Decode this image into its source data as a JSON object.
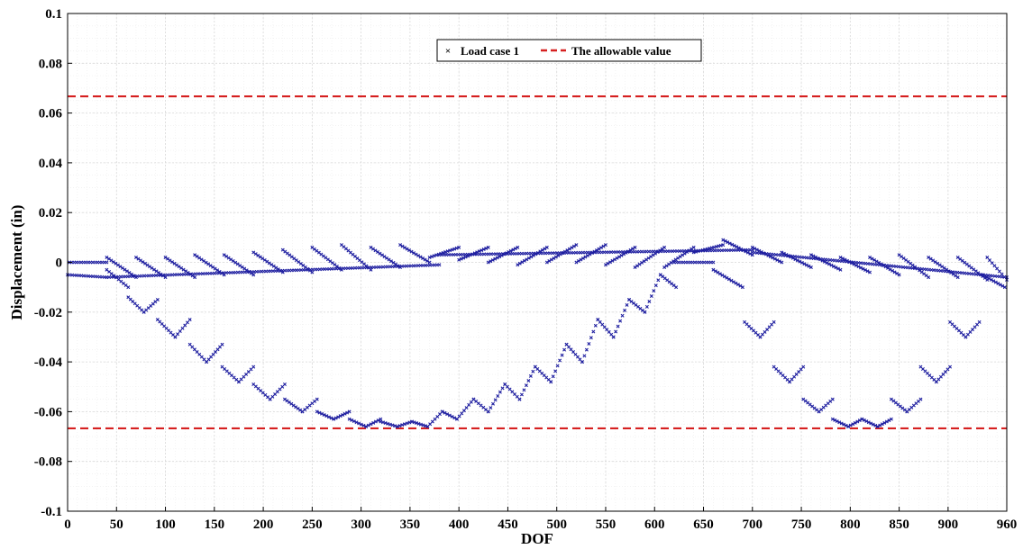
{
  "chart_data": {
    "type": "scatter",
    "xlabel": "DOF",
    "ylabel": "Displacement (in)",
    "xlim": [
      0,
      960
    ],
    "ylim": [
      -0.1,
      0.1
    ],
    "xticks": [
      0,
      50,
      100,
      150,
      200,
      250,
      300,
      350,
      400,
      450,
      500,
      550,
      600,
      650,
      700,
      750,
      800,
      850,
      900,
      960
    ],
    "xtick_labels": [
      "0",
      "50",
      "100",
      "150",
      "200",
      "250",
      "300",
      "350",
      "400",
      "450",
      "500",
      "550",
      "600",
      "650",
      "700",
      "750",
      "800",
      "850",
      "900",
      "960"
    ],
    "yticks": [
      0.1,
      0.08,
      0.06,
      0.04,
      0.02,
      0,
      -0.02,
      -0.04,
      -0.06,
      -0.08,
      -0.1
    ],
    "ytick_labels": [
      "0.1",
      "0.08",
      "0.06",
      "0.04",
      "0.02",
      "0",
      "-0.02",
      "-0.04",
      "-0.06",
      "-0.08",
      "-0.1"
    ],
    "grid": "major and minor",
    "legend_position": "top-center",
    "colors": {
      "series": "#1f1fa0",
      "limit": "#d62020",
      "grid": "#d9d9d9"
    },
    "series": [
      {
        "name": "Load case 1",
        "marker": "x",
        "segments": [
          {
            "x0": 2,
            "x1": 40,
            "y0": 0.0,
            "y1": 0.0
          },
          {
            "x0": 40,
            "x1": 62,
            "y0": -0.003,
            "y1": -0.01
          },
          {
            "x0": 62,
            "x1": 78,
            "y0": -0.014,
            "y1": -0.02
          },
          {
            "x0": 78,
            "x1": 92,
            "y0": -0.02,
            "y1": -0.015
          },
          {
            "x0": 92,
            "x1": 110,
            "y0": -0.023,
            "y1": -0.03
          },
          {
            "x0": 110,
            "x1": 125,
            "y0": -0.03,
            "y1": -0.023
          },
          {
            "x0": 125,
            "x1": 142,
            "y0": -0.033,
            "y1": -0.04
          },
          {
            "x0": 142,
            "x1": 158,
            "y0": -0.04,
            "y1": -0.033
          },
          {
            "x0": 158,
            "x1": 175,
            "y0": -0.042,
            "y1": -0.048
          },
          {
            "x0": 175,
            "x1": 190,
            "y0": -0.048,
            "y1": -0.042
          },
          {
            "x0": 190,
            "x1": 207,
            "y0": -0.049,
            "y1": -0.055
          },
          {
            "x0": 207,
            "x1": 222,
            "y0": -0.055,
            "y1": -0.049
          },
          {
            "x0": 222,
            "x1": 240,
            "y0": -0.055,
            "y1": -0.06
          },
          {
            "x0": 240,
            "x1": 255,
            "y0": -0.06,
            "y1": -0.055
          },
          {
            "x0": 255,
            "x1": 272,
            "y0": -0.06,
            "y1": -0.063
          },
          {
            "x0": 272,
            "x1": 288,
            "y0": -0.063,
            "y1": -0.06
          },
          {
            "x0": 288,
            "x1": 305,
            "y0": -0.063,
            "y1": -0.066
          },
          {
            "x0": 305,
            "x1": 320,
            "y0": -0.066,
            "y1": -0.063
          },
          {
            "x0": 320,
            "x1": 337,
            "y0": -0.064,
            "y1": -0.066
          },
          {
            "x0": 337,
            "x1": 352,
            "y0": -0.066,
            "y1": -0.064
          },
          {
            "x0": 352,
            "x1": 368,
            "y0": -0.064,
            "y1": -0.066
          },
          {
            "x0": 368,
            "x1": 383,
            "y0": -0.066,
            "y1": -0.06
          },
          {
            "x0": 383,
            "x1": 398,
            "y0": -0.06,
            "y1": -0.063
          },
          {
            "x0": 398,
            "x1": 415,
            "y0": -0.063,
            "y1": -0.055
          },
          {
            "x0": 415,
            "x1": 430,
            "y0": -0.055,
            "y1": -0.06
          },
          {
            "x0": 430,
            "x1": 447,
            "y0": -0.06,
            "y1": -0.049
          },
          {
            "x0": 447,
            "x1": 462,
            "y0": -0.049,
            "y1": -0.055
          },
          {
            "x0": 462,
            "x1": 478,
            "y0": -0.055,
            "y1": -0.042
          },
          {
            "x0": 478,
            "x1": 494,
            "y0": -0.042,
            "y1": -0.048
          },
          {
            "x0": 494,
            "x1": 510,
            "y0": -0.048,
            "y1": -0.033
          },
          {
            "x0": 510,
            "x1": 526,
            "y0": -0.033,
            "y1": -0.04
          },
          {
            "x0": 526,
            "x1": 542,
            "y0": -0.04,
            "y1": -0.023
          },
          {
            "x0": 542,
            "x1": 558,
            "y0": -0.023,
            "y1": -0.03
          },
          {
            "x0": 558,
            "x1": 574,
            "y0": -0.03,
            "y1": -0.015
          },
          {
            "x0": 574,
            "x1": 590,
            "y0": -0.015,
            "y1": -0.02
          },
          {
            "x0": 590,
            "x1": 606,
            "y0": -0.02,
            "y1": -0.005
          },
          {
            "x0": 606,
            "x1": 622,
            "y0": -0.005,
            "y1": -0.01
          },
          {
            "x0": 620,
            "x1": 660,
            "y0": 0.0,
            "y1": 0.0
          },
          {
            "x0": 660,
            "x1": 690,
            "y0": -0.003,
            "y1": -0.01
          },
          {
            "x0": 692,
            "x1": 708,
            "y0": -0.024,
            "y1": -0.03
          },
          {
            "x0": 708,
            "x1": 722,
            "y0": -0.03,
            "y1": -0.024
          },
          {
            "x0": 722,
            "x1": 738,
            "y0": -0.042,
            "y1": -0.048
          },
          {
            "x0": 738,
            "x1": 752,
            "y0": -0.048,
            "y1": -0.042
          },
          {
            "x0": 752,
            "x1": 768,
            "y0": -0.055,
            "y1": -0.06
          },
          {
            "x0": 768,
            "x1": 782,
            "y0": -0.06,
            "y1": -0.055
          },
          {
            "x0": 782,
            "x1": 798,
            "y0": -0.063,
            "y1": -0.066
          },
          {
            "x0": 798,
            "x1": 812,
            "y0": -0.066,
            "y1": -0.063
          },
          {
            "x0": 812,
            "x1": 828,
            "y0": -0.063,
            "y1": -0.066
          },
          {
            "x0": 828,
            "x1": 842,
            "y0": -0.066,
            "y1": -0.063
          },
          {
            "x0": 842,
            "x1": 858,
            "y0": -0.055,
            "y1": -0.06
          },
          {
            "x0": 858,
            "x1": 872,
            "y0": -0.06,
            "y1": -0.055
          },
          {
            "x0": 872,
            "x1": 888,
            "y0": -0.042,
            "y1": -0.048
          },
          {
            "x0": 888,
            "x1": 902,
            "y0": -0.048,
            "y1": -0.042
          },
          {
            "x0": 902,
            "x1": 918,
            "y0": -0.024,
            "y1": -0.03
          },
          {
            "x0": 918,
            "x1": 932,
            "y0": -0.03,
            "y1": -0.024
          },
          {
            "x0": 935,
            "x1": 958,
            "y0": -0.005,
            "y1": -0.01
          },
          {
            "x0": 40,
            "x1": 70,
            "y0": 0.002,
            "y1": -0.006
          },
          {
            "x0": 70,
            "x1": 100,
            "y0": 0.002,
            "y1": -0.006
          },
          {
            "x0": 100,
            "x1": 130,
            "y0": 0.002,
            "y1": -0.006
          },
          {
            "x0": 130,
            "x1": 160,
            "y0": 0.003,
            "y1": -0.005
          },
          {
            "x0": 160,
            "x1": 190,
            "y0": 0.003,
            "y1": -0.005
          },
          {
            "x0": 190,
            "x1": 220,
            "y0": 0.004,
            "y1": -0.004
          },
          {
            "x0": 220,
            "x1": 250,
            "y0": 0.005,
            "y1": -0.004
          },
          {
            "x0": 250,
            "x1": 280,
            "y0": 0.006,
            "y1": -0.003
          },
          {
            "x0": 280,
            "x1": 310,
            "y0": 0.007,
            "y1": -0.003
          },
          {
            "x0": 310,
            "x1": 340,
            "y0": 0.006,
            "y1": -0.002
          },
          {
            "x0": 340,
            "x1": 370,
            "y0": 0.007,
            "y1": 0.0
          },
          {
            "x0": 370,
            "x1": 400,
            "y0": 0.002,
            "y1": 0.006
          },
          {
            "x0": 400,
            "x1": 430,
            "y0": 0.001,
            "y1": 0.006
          },
          {
            "x0": 430,
            "x1": 460,
            "y0": 0.0,
            "y1": 0.006
          },
          {
            "x0": 460,
            "x1": 490,
            "y0": -0.001,
            "y1": 0.006
          },
          {
            "x0": 490,
            "x1": 520,
            "y0": 0.0,
            "y1": 0.007
          },
          {
            "x0": 520,
            "x1": 550,
            "y0": 0.0,
            "y1": 0.007
          },
          {
            "x0": 550,
            "x1": 580,
            "y0": -0.001,
            "y1": 0.006
          },
          {
            "x0": 580,
            "x1": 610,
            "y0": -0.002,
            "y1": 0.006
          },
          {
            "x0": 610,
            "x1": 640,
            "y0": -0.002,
            "y1": 0.006
          },
          {
            "x0": 640,
            "x1": 670,
            "y0": 0.004,
            "y1": 0.007
          },
          {
            "x0": 670,
            "x1": 700,
            "y0": 0.009,
            "y1": 0.003
          },
          {
            "x0": 700,
            "x1": 730,
            "y0": 0.006,
            "y1": 0.0
          },
          {
            "x0": 730,
            "x1": 760,
            "y0": 0.004,
            "y1": -0.002
          },
          {
            "x0": 760,
            "x1": 790,
            "y0": 0.003,
            "y1": -0.003
          },
          {
            "x0": 790,
            "x1": 820,
            "y0": 0.002,
            "y1": -0.004
          },
          {
            "x0": 820,
            "x1": 850,
            "y0": 0.002,
            "y1": -0.005
          },
          {
            "x0": 850,
            "x1": 880,
            "y0": 0.003,
            "y1": -0.006
          },
          {
            "x0": 880,
            "x1": 910,
            "y0": 0.002,
            "y1": -0.006
          },
          {
            "x0": 910,
            "x1": 940,
            "y0": 0.002,
            "y1": -0.007
          },
          {
            "x0": 940,
            "x1": 960,
            "y0": 0.002,
            "y1": -0.007
          },
          {
            "x0": 0,
            "x1": 40,
            "y0": -0.005,
            "y1": -0.006
          },
          {
            "x0": 40,
            "x1": 380,
            "y0": -0.006,
            "y1": -0.001
          },
          {
            "x0": 380,
            "x1": 700,
            "y0": 0.003,
            "y1": 0.005
          },
          {
            "x0": 700,
            "x1": 960,
            "y0": 0.004,
            "y1": -0.006
          }
        ]
      },
      {
        "name": "The allowable value",
        "style": "dashed",
        "values": [
          0.0667,
          -0.0667
        ]
      }
    ]
  }
}
